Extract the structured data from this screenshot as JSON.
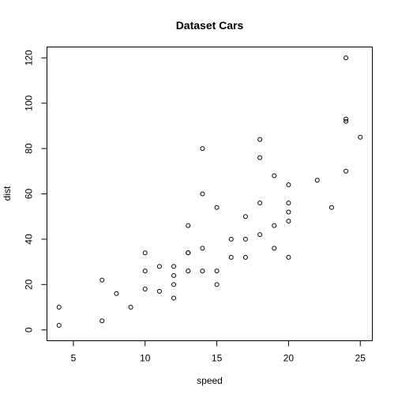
{
  "chart_data": {
    "type": "scatter",
    "title": "Dataset Cars",
    "xlabel": "speed",
    "ylabel": "dist",
    "xlim": [
      4,
      25
    ],
    "ylim": [
      0,
      120
    ],
    "xticks": [
      5,
      10,
      15,
      20,
      25
    ],
    "yticks": [
      0,
      20,
      40,
      60,
      80,
      100,
      120
    ],
    "grid": false,
    "marker": "open-circle",
    "colors": {
      "points": "#000000",
      "frame": "#000000",
      "background": "#ffffff"
    },
    "points": [
      {
        "x": 4,
        "y": 2
      },
      {
        "x": 4,
        "y": 10
      },
      {
        "x": 7,
        "y": 4
      },
      {
        "x": 7,
        "y": 22
      },
      {
        "x": 8,
        "y": 16
      },
      {
        "x": 9,
        "y": 10
      },
      {
        "x": 10,
        "y": 18
      },
      {
        "x": 10,
        "y": 26
      },
      {
        "x": 10,
        "y": 34
      },
      {
        "x": 11,
        "y": 17
      },
      {
        "x": 11,
        "y": 28
      },
      {
        "x": 12,
        "y": 14
      },
      {
        "x": 12,
        "y": 20
      },
      {
        "x": 12,
        "y": 24
      },
      {
        "x": 12,
        "y": 28
      },
      {
        "x": 13,
        "y": 26
      },
      {
        "x": 13,
        "y": 34
      },
      {
        "x": 13,
        "y": 34
      },
      {
        "x": 13,
        "y": 46
      },
      {
        "x": 14,
        "y": 26
      },
      {
        "x": 14,
        "y": 36
      },
      {
        "x": 14,
        "y": 60
      },
      {
        "x": 14,
        "y": 80
      },
      {
        "x": 15,
        "y": 20
      },
      {
        "x": 15,
        "y": 26
      },
      {
        "x": 15,
        "y": 54
      },
      {
        "x": 16,
        "y": 32
      },
      {
        "x": 16,
        "y": 40
      },
      {
        "x": 17,
        "y": 32
      },
      {
        "x": 17,
        "y": 40
      },
      {
        "x": 17,
        "y": 50
      },
      {
        "x": 18,
        "y": 42
      },
      {
        "x": 18,
        "y": 56
      },
      {
        "x": 18,
        "y": 76
      },
      {
        "x": 18,
        "y": 84
      },
      {
        "x": 19,
        "y": 36
      },
      {
        "x": 19,
        "y": 46
      },
      {
        "x": 19,
        "y": 68
      },
      {
        "x": 20,
        "y": 32
      },
      {
        "x": 20,
        "y": 48
      },
      {
        "x": 20,
        "y": 52
      },
      {
        "x": 20,
        "y": 56
      },
      {
        "x": 20,
        "y": 64
      },
      {
        "x": 22,
        "y": 66
      },
      {
        "x": 23,
        "y": 54
      },
      {
        "x": 24,
        "y": 70
      },
      {
        "x": 24,
        "y": 92
      },
      {
        "x": 24,
        "y": 93
      },
      {
        "x": 24,
        "y": 120
      },
      {
        "x": 25,
        "y": 85
      }
    ]
  }
}
